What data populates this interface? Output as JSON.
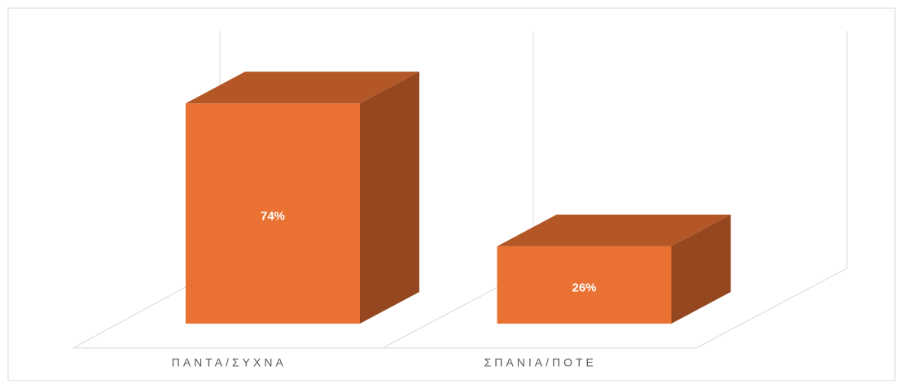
{
  "chart_data": {
    "type": "bar3d",
    "categories": [
      "ΠΑΝΤΑ/ΣΥΧΝΑ",
      "ΣΠΑΝΙΑ/ΠΟΤΕ"
    ],
    "values": [
      74,
      26
    ],
    "value_labels": [
      "74%",
      "26%"
    ],
    "color": "#e97132"
  }
}
